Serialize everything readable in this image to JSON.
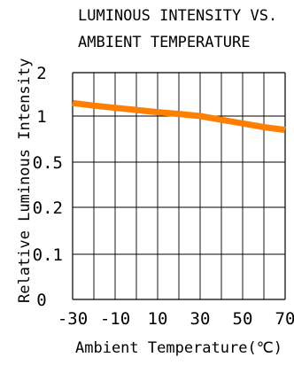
{
  "chart_data": {
    "type": "line",
    "title_lines": [
      "LUMINOUS INTENSITY VS.",
      "AMBIENT TEMPERATURE"
    ],
    "xlabel": "Ambient Temperature(℃)",
    "ylabel": "Relative  Luminous Intensity",
    "x_ticks": [
      "-30",
      "-10",
      "10",
      "30",
      "50",
      "70"
    ],
    "x_tick_values": [
      -30,
      -10,
      10,
      30,
      50,
      70
    ],
    "xlim": [
      -30,
      70
    ],
    "y_ticks": [
      "0",
      "0.1",
      "0.2",
      "0.5",
      "1",
      "2"
    ],
    "y_tick_values": [
      0,
      0.1,
      0.2,
      0.5,
      1,
      2
    ],
    "grid": true,
    "series": [
      {
        "color": "#ff7f00",
        "x": [
          -30,
          -20,
          -10,
          0,
          10,
          20,
          30,
          40,
          50,
          60,
          70
        ],
        "y": [
          1.3,
          1.24,
          1.19,
          1.14,
          1.09,
          1.05,
          1.0,
          0.96,
          0.92,
          0.88,
          0.85
        ]
      }
    ]
  }
}
